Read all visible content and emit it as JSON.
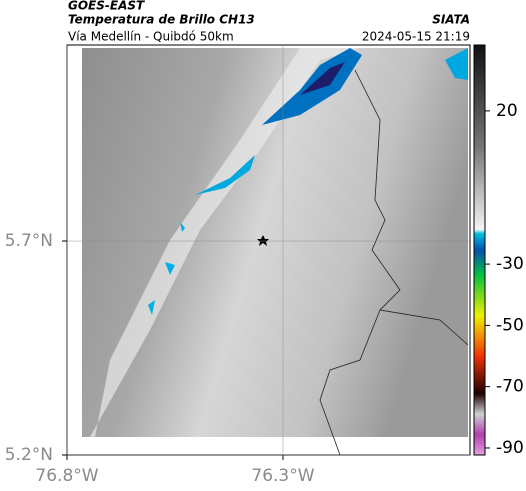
{
  "header": {
    "title": "GOES-EAST",
    "subtitle": "Temperatura de Brillo CH13",
    "route": "Vía Medellín - Quibdó 50km",
    "source": "SIATA",
    "timestamp": "2024-05-15 21:19"
  },
  "map": {
    "lonlim": [
      -76.8,
      -75.867
    ],
    "latlim": [
      5.2,
      6.158
    ],
    "lonticks": [
      {
        "value": -76.8,
        "label": "76.8°W"
      },
      {
        "value": -76.3,
        "label": "76.3°W"
      }
    ],
    "latticks": [
      {
        "value": 5.7,
        "label": "5.7°N"
      },
      {
        "value": 5.2,
        "label": "5.2°N"
      }
    ]
  },
  "colorbar": {
    "range": [
      -92.3,
      41.5
    ],
    "ticks": [
      20,
      -30,
      -50,
      -70,
      -90
    ]
  }
}
